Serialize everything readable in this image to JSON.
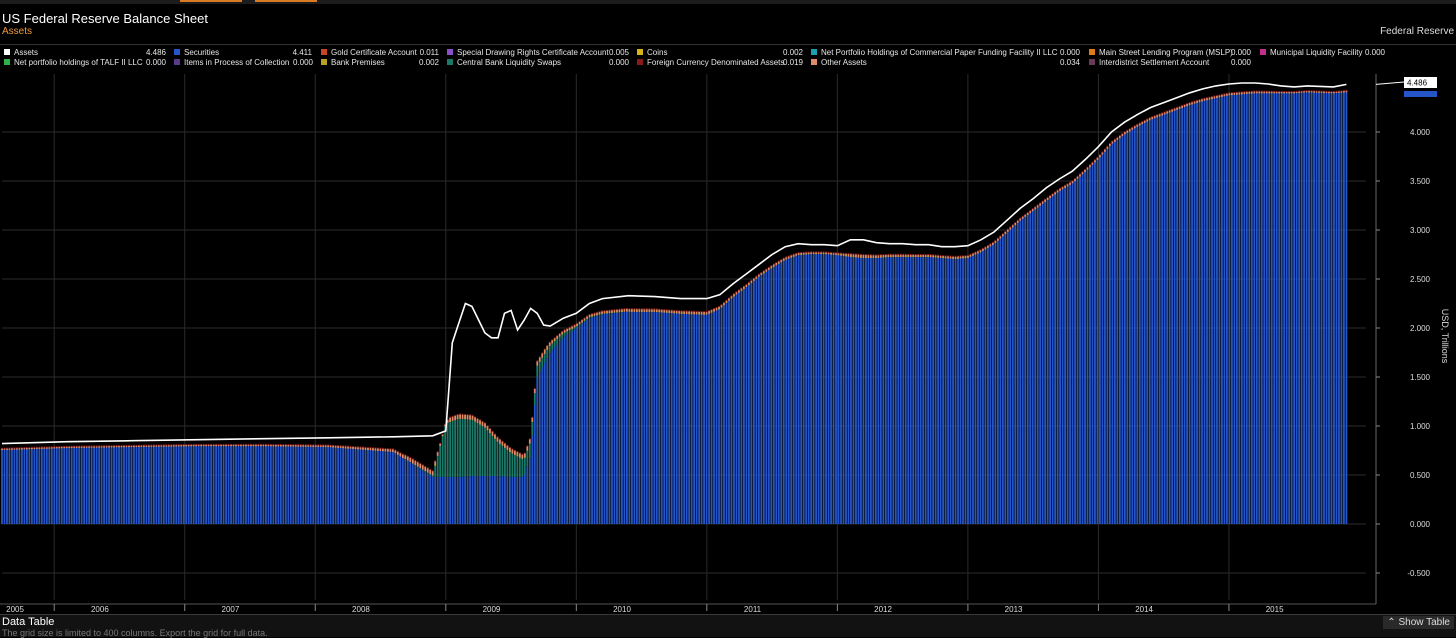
{
  "header": {
    "title": "US Federal Reserve Balance Sheet",
    "subtitle": "Assets",
    "source": "Federal Reserve"
  },
  "legend": [
    {
      "name": "Assets",
      "value": "4.486",
      "color": "#ffffff"
    },
    {
      "name": "Securities",
      "value": "4.411",
      "color": "#2556c9"
    },
    {
      "name": "Gold Certificate Account",
      "value": "0.011",
      "color": "#c8452a"
    },
    {
      "name": "Special Drawing Rights Certificate Account",
      "value": "0.005",
      "color": "#8a4fc9"
    },
    {
      "name": "Coins",
      "value": "0.002",
      "color": "#d9b21c"
    },
    {
      "name": "Net Portfolio Holdings of Commercial Paper Funding Facility II LLC",
      "value": "0.000",
      "color": "#1aa0b0"
    },
    {
      "name": "Main Street Lending Program (MSLP)",
      "value": "0.000",
      "color": "#e07b1a"
    },
    {
      "name": "Municipal Liquidity Facility",
      "value": "0.000",
      "color": "#c0308a"
    },
    {
      "name": "Net portfolio holdings of TALF II LLC",
      "value": "0.000",
      "color": "#2fb04a"
    },
    {
      "name": "Items in Process of Collection",
      "value": "0.000",
      "color": "#5a3a8a"
    },
    {
      "name": "Bank Premises",
      "value": "0.002",
      "color": "#b8a020"
    },
    {
      "name": "Central Bank Liquidity Swaps",
      "value": "0.000",
      "color": "#1a7a6a"
    },
    {
      "name": "Foreign Currency Denominated Assets",
      "value": "0.019",
      "color": "#8a1a1a"
    },
    {
      "name": "Other Assets",
      "value": "0.034",
      "color": "#e08a6a"
    },
    {
      "name": "Interdistrict Settlement Account",
      "value": "0.000",
      "color": "#6a3a5a"
    }
  ],
  "chart_data": {
    "type": "bar",
    "ylabel": "USD, Trillions",
    "ylim": [
      -0.6,
      4.6
    ],
    "yticks": [
      "4.000",
      "3.500",
      "3.000",
      "2.500",
      "2.000",
      "1.500",
      "1.000",
      "0.500",
      "0.000",
      "-0.500"
    ],
    "yticks_values": [
      4.0,
      3.5,
      3.0,
      2.5,
      2.0,
      1.5,
      1.0,
      0.5,
      0.0,
      -0.5
    ],
    "xlim": [
      2005.0,
      2015.45
    ],
    "year_labels": [
      "2005",
      "2006",
      "2007",
      "2008",
      "2009",
      "2010",
      "2011",
      "2012",
      "2013",
      "2014",
      "2015"
    ],
    "year_label_values": [
      2005.1,
      2005.75,
      2006.75,
      2007.75,
      2008.75,
      2009.75,
      2010.75,
      2011.75,
      2012.75,
      2013.75,
      2014.75
    ],
    "year_boundaries": [
      2005.4,
      2006.4,
      2007.4,
      2008.4,
      2009.4,
      2010.4,
      2011.4,
      2012.4,
      2013.4,
      2014.4
    ],
    "last_value_label": "4.486",
    "series": [
      {
        "name": "Assets",
        "x": [
          2005.0,
          2005.5,
          2006.0,
          2006.5,
          2007.0,
          2007.5,
          2008.0,
          2008.3,
          2008.4,
          2008.45,
          2008.5,
          2008.55,
          2008.6,
          2008.7,
          2008.75,
          2008.8,
          2008.85,
          2008.9,
          2008.95,
          2009.0,
          2009.05,
          2009.1,
          2009.15,
          2009.2,
          2009.3,
          2009.4,
          2009.5,
          2009.6,
          2009.8,
          2010.0,
          2010.2,
          2010.4,
          2010.5,
          2010.6,
          2010.7,
          2010.8,
          2010.9,
          2011.0,
          2011.1,
          2011.2,
          2011.3,
          2011.4,
          2011.5,
          2011.6,
          2011.7,
          2011.8,
          2011.9,
          2012.0,
          2012.1,
          2012.2,
          2012.3,
          2012.4,
          2012.5,
          2012.6,
          2012.7,
          2012.8,
          2012.9,
          2013.0,
          2013.1,
          2013.2,
          2013.3,
          2013.4,
          2013.5,
          2013.6,
          2013.7,
          2013.8,
          2013.9,
          2014.0,
          2014.1,
          2014.2,
          2014.3,
          2014.4,
          2014.5,
          2014.6,
          2014.7,
          2014.8,
          2014.9,
          2015.0,
          2015.2,
          2015.3
        ],
        "values": [
          0.82,
          0.84,
          0.85,
          0.86,
          0.87,
          0.88,
          0.89,
          0.9,
          0.95,
          1.85,
          2.05,
          2.25,
          2.22,
          1.95,
          1.9,
          1.9,
          2.15,
          2.18,
          1.98,
          2.08,
          2.2,
          2.15,
          2.03,
          2.02,
          2.1,
          2.15,
          2.25,
          2.3,
          2.33,
          2.32,
          2.3,
          2.3,
          2.34,
          2.45,
          2.55,
          2.65,
          2.75,
          2.83,
          2.86,
          2.85,
          2.85,
          2.84,
          2.9,
          2.9,
          2.87,
          2.86,
          2.86,
          2.85,
          2.85,
          2.83,
          2.83,
          2.84,
          2.9,
          2.98,
          3.1,
          3.22,
          3.32,
          3.43,
          3.52,
          3.6,
          3.72,
          3.85,
          4.0,
          4.1,
          4.18,
          4.25,
          4.3,
          4.35,
          4.4,
          4.44,
          4.47,
          4.49,
          4.5,
          4.5,
          4.49,
          4.47,
          4.46,
          4.47,
          4.46,
          4.486
        ]
      },
      {
        "name": "Securities",
        "x": [
          2005.0,
          2005.5,
          2006.0,
          2006.5,
          2007.0,
          2007.5,
          2008.0,
          2008.3,
          2008.4,
          2008.5,
          2008.6,
          2008.7,
          2008.8,
          2008.9,
          2009.0,
          2009.05,
          2009.1,
          2009.2,
          2009.3,
          2009.4,
          2009.5,
          2009.6,
          2009.8,
          2010.0,
          2010.2,
          2010.4,
          2010.5,
          2010.6,
          2010.7,
          2010.8,
          2010.9,
          2011.0,
          2011.1,
          2011.2,
          2011.3,
          2011.4,
          2011.5,
          2011.6,
          2011.7,
          2011.8,
          2011.9,
          2012.0,
          2012.1,
          2012.2,
          2012.3,
          2012.4,
          2012.5,
          2012.6,
          2012.7,
          2012.8,
          2012.9,
          2013.0,
          2013.1,
          2013.2,
          2013.3,
          2013.4,
          2013.5,
          2013.6,
          2013.7,
          2013.8,
          2013.9,
          2014.0,
          2014.1,
          2014.2,
          2014.3,
          2014.4,
          2014.5,
          2014.6,
          2014.7,
          2014.8,
          2014.9,
          2015.0,
          2015.2,
          2015.3
        ],
        "values": [
          0.76,
          0.78,
          0.79,
          0.8,
          0.8,
          0.79,
          0.74,
          0.48,
          0.48,
          0.48,
          0.49,
          0.49,
          0.49,
          0.48,
          0.48,
          0.7,
          1.5,
          1.75,
          1.9,
          2.0,
          2.1,
          2.14,
          2.17,
          2.17,
          2.15,
          2.14,
          2.2,
          2.32,
          2.42,
          2.53,
          2.62,
          2.7,
          2.75,
          2.76,
          2.76,
          2.75,
          2.73,
          2.72,
          2.72,
          2.73,
          2.73,
          2.73,
          2.73,
          2.72,
          2.71,
          2.72,
          2.78,
          2.86,
          2.98,
          3.1,
          3.2,
          3.3,
          3.4,
          3.48,
          3.6,
          3.73,
          3.88,
          3.98,
          4.06,
          4.13,
          4.18,
          4.23,
          4.28,
          4.32,
          4.35,
          4.38,
          4.39,
          4.4,
          4.4,
          4.4,
          4.4,
          4.41,
          4.4,
          4.411
        ]
      },
      {
        "name": "Central Bank Liquidity Swaps",
        "x": [
          2005.0,
          2008.0,
          2008.3,
          2008.4,
          2008.5,
          2008.6,
          2008.7,
          2008.8,
          2008.9,
          2009.0,
          2009.1,
          2009.2,
          2009.3,
          2009.4,
          2009.6,
          2010.0,
          2015.3
        ],
        "values": [
          0.0,
          0.0,
          0.02,
          0.55,
          0.6,
          0.58,
          0.5,
          0.35,
          0.25,
          0.18,
          0.12,
          0.08,
          0.05,
          0.02,
          0.01,
          0.0,
          0.0
        ]
      }
    ]
  },
  "footer": {
    "title": "Data Table",
    "note": "The grid size is limited to 400 columns. Export the grid for full data.",
    "show_table": "Show Table"
  }
}
